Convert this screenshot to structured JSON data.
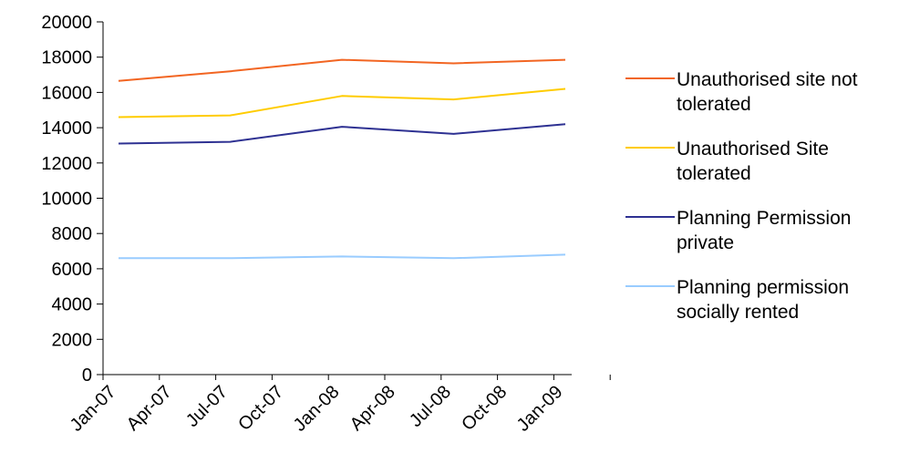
{
  "chart_data": {
    "type": "line",
    "title": "",
    "xlabel": "",
    "ylabel": "",
    "ylim": [
      0,
      20000
    ],
    "yticks": [
      0,
      2000,
      4000,
      6000,
      8000,
      10000,
      12000,
      14000,
      16000,
      18000,
      20000
    ],
    "x_categories": [
      "Jan-07",
      "Apr-07",
      "Jul-07",
      "Oct-07",
      "Jan-08",
      "Apr-08",
      "Jul-08",
      "Oct-08",
      "Jan-09"
    ],
    "grid": false,
    "legend_position": "right",
    "series": [
      {
        "name": "Unauthorised site not tolerated",
        "legend_lines": [
          "Unauthorised site not",
          "tolerated"
        ],
        "color": "#f26522",
        "points": [
          {
            "x": "Jan-07",
            "y": 16650
          },
          {
            "x": "Jul-07",
            "y": 17200
          },
          {
            "x": "Jan-08",
            "y": 17850
          },
          {
            "x": "Jul-08",
            "y": 17650
          },
          {
            "x": "Jan-09",
            "y": 17850
          }
        ]
      },
      {
        "name": "Unauthorised Site tolerated",
        "legend_lines": [
          "Unauthorised Site",
          "tolerated"
        ],
        "color": "#ffcc00",
        "points": [
          {
            "x": "Jan-07",
            "y": 14600
          },
          {
            "x": "Jul-07",
            "y": 14700
          },
          {
            "x": "Jan-08",
            "y": 15800
          },
          {
            "x": "Jul-08",
            "y": 15600
          },
          {
            "x": "Jan-09",
            "y": 16200
          }
        ]
      },
      {
        "name": "Planning Permission private",
        "legend_lines": [
          "Planning Permission",
          "private"
        ],
        "color": "#2e3192",
        "points": [
          {
            "x": "Jan-07",
            "y": 13100
          },
          {
            "x": "Jul-07",
            "y": 13200
          },
          {
            "x": "Jan-08",
            "y": 14050
          },
          {
            "x": "Jul-08",
            "y": 13650
          },
          {
            "x": "Jan-09",
            "y": 14200
          }
        ]
      },
      {
        "name": "Planning permission socially rented",
        "legend_lines": [
          "Planning permission",
          "socially rented"
        ],
        "color": "#99ccff",
        "points": [
          {
            "x": "Jan-07",
            "y": 6600
          },
          {
            "x": "Jul-07",
            "y": 6600
          },
          {
            "x": "Jan-08",
            "y": 6700
          },
          {
            "x": "Jul-08",
            "y": 6600
          },
          {
            "x": "Jan-09",
            "y": 6800
          }
        ]
      }
    ]
  }
}
